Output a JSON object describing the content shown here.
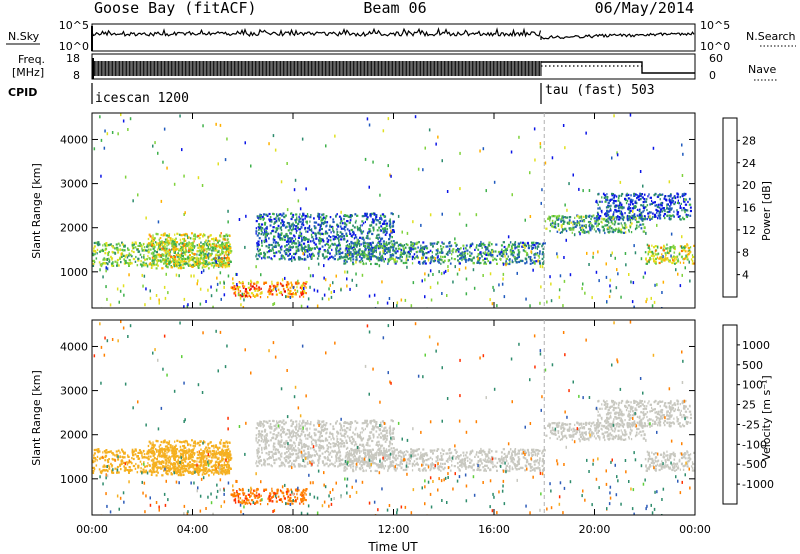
{
  "header": {
    "station": "Goose Bay (fitACF)",
    "beam": "Beam 06",
    "date": "06/May/2014"
  },
  "top_panels": {
    "nsky": {
      "label": "N.Sky",
      "ticks": [
        "10^5",
        "10^0"
      ]
    },
    "nsearch": {
      "label": "N.Search",
      "ticks": [
        "10^5",
        "10^0"
      ]
    },
    "freq": {
      "label_line1": "Freq.",
      "label_line2": "[MHz]",
      "ticks": [
        "18",
        "8"
      ]
    },
    "nave": {
      "label": "Nave",
      "ticks": [
        "60",
        "0"
      ]
    },
    "cpid": {
      "label": "CPID",
      "modes": [
        {
          "name": "icescan 1200"
        },
        {
          "name": "tau (fast) 503"
        }
      ]
    }
  },
  "axes": {
    "ylabel": "Slant Range [km]",
    "yticks": [
      "1000",
      "2000",
      "3000",
      "4000"
    ],
    "xticks": [
      "00:00",
      "04:00",
      "08:00",
      "12:00",
      "16:00",
      "20:00",
      "00:00"
    ],
    "xlabel": "Time UT"
  },
  "colorbars": {
    "power": {
      "label": "Power [dB]",
      "ticks": [
        "4",
        "8",
        "12",
        "16",
        "20",
        "24",
        "28"
      ],
      "colors": [
        "#0a14e6",
        "#1f5abe",
        "#2b8a6c",
        "#3eb04a",
        "#7fd23c",
        "#e0e020",
        "#ffb000",
        "#ff7000",
        "#ff2000",
        "#e00000"
      ]
    },
    "velocity": {
      "label": "Velocity [m s⁻¹]",
      "ticks": [
        "1000",
        "500",
        "100",
        "25",
        "-25",
        "-100",
        "-500",
        "-1000"
      ],
      "colors": [
        "#1a2ad6",
        "#2e5cb8",
        "#2e8c6c",
        "#5fcf3a",
        "#c8c8c0",
        "#c8c8c0",
        "#f5b020",
        "#ff8000",
        "#ff3000",
        "#e00000"
      ]
    }
  },
  "chart_data": {
    "type": "heatmap",
    "x_range_hours": [
      0,
      24
    ],
    "y_range_km": [
      180,
      4600
    ],
    "mode_switch_hour": 18,
    "backscatter_regions": [
      {
        "t0": 0.0,
        "t1": 5.5,
        "r0": 1150,
        "r1": 1700,
        "power_db": 14,
        "velocity": -60
      },
      {
        "t0": 2.2,
        "t1": 5.5,
        "r0": 1100,
        "r1": 1900,
        "power_db": 18,
        "velocity": -80
      },
      {
        "t0": 5.5,
        "t1": 8.5,
        "r0": 450,
        "r1": 800,
        "power_db": 24,
        "velocity": -400
      },
      {
        "t0": 6.5,
        "t1": 12.0,
        "r0": 1300,
        "r1": 2350,
        "power_db": 8,
        "velocity": 0
      },
      {
        "t0": 10.0,
        "t1": 18.0,
        "r0": 1200,
        "r1": 1700,
        "power_db": 10,
        "velocity": 0
      },
      {
        "t0": 18.0,
        "t1": 22.0,
        "r0": 1900,
        "r1": 2300,
        "power_db": 12,
        "velocity": 0
      },
      {
        "t0": 20.0,
        "t1": 23.8,
        "r0": 2200,
        "r1": 2800,
        "power_db": 6,
        "velocity": 0
      },
      {
        "t0": 22.0,
        "t1": 24.0,
        "r0": 1200,
        "r1": 1650,
        "power_db": 18,
        "velocity": 0
      }
    ]
  }
}
